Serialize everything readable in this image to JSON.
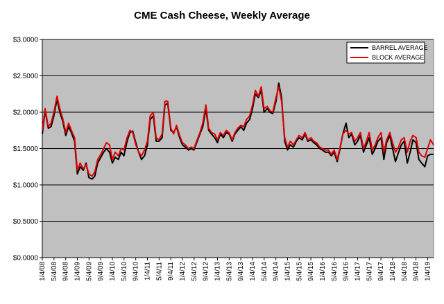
{
  "chart_data": {
    "type": "line",
    "title": "CME Cash Cheese, Weekly Average",
    "ylim": [
      0,
      3
    ],
    "y_ticks": [
      "$0.0000",
      "$0.5000",
      "$1.0000",
      "$1.5000",
      "$2.0000",
      "$2.5000",
      "$3.0000"
    ],
    "x_ticks": [
      "1/4/08",
      "5/4/08",
      "9/4/08",
      "1/4/09",
      "5/4/09",
      "9/4/09",
      "1/4/10",
      "5/4/10",
      "9/4/10",
      "1/4/11",
      "5/4/11",
      "9/4/11",
      "1/4/12",
      "5/4/12",
      "9/4/12",
      "1/4/13",
      "5/4/13",
      "9/4/13",
      "1/4/14",
      "5/4/14",
      "9/4/14",
      "1/4/15",
      "5/4/15",
      "9/4/15",
      "1/4/16",
      "5/4/16",
      "9/4/16",
      "1/4/17",
      "5/4/17",
      "9/4/17",
      "1/4/18",
      "5/4/18",
      "9/4/18",
      "1/4/19"
    ],
    "grid": "horizontal",
    "legend_position": "top-right",
    "plot_background": "#c0c0c0",
    "x": [
      2008.0,
      2008.08,
      2008.17,
      2008.25,
      2008.33,
      2008.42,
      2008.5,
      2008.58,
      2008.67,
      2008.75,
      2008.83,
      2008.92,
      2009.0,
      2009.08,
      2009.17,
      2009.25,
      2009.33,
      2009.42,
      2009.5,
      2009.58,
      2009.67,
      2009.75,
      2009.83,
      2009.92,
      2010.0,
      2010.08,
      2010.17,
      2010.25,
      2010.33,
      2010.42,
      2010.5,
      2010.58,
      2010.67,
      2010.75,
      2010.83,
      2010.92,
      2011.0,
      2011.08,
      2011.17,
      2011.25,
      2011.33,
      2011.42,
      2011.5,
      2011.58,
      2011.67,
      2011.75,
      2011.83,
      2011.92,
      2012.0,
      2012.08,
      2012.17,
      2012.25,
      2012.33,
      2012.42,
      2012.5,
      2012.58,
      2012.67,
      2012.75,
      2012.83,
      2012.92,
      2013.0,
      2013.08,
      2013.17,
      2013.25,
      2013.33,
      2013.42,
      2013.5,
      2013.58,
      2013.67,
      2013.75,
      2013.83,
      2013.92,
      2014.0,
      2014.08,
      2014.17,
      2014.25,
      2014.33,
      2014.42,
      2014.5,
      2014.58,
      2014.67,
      2014.75,
      2014.83,
      2014.92,
      2015.0,
      2015.08,
      2015.17,
      2015.25,
      2015.33,
      2015.42,
      2015.5,
      2015.58,
      2015.67,
      2015.75,
      2015.83,
      2015.92,
      2016.0,
      2016.08,
      2016.17,
      2016.25,
      2016.33,
      2016.42,
      2016.5,
      2016.58,
      2016.67,
      2016.75,
      2016.83,
      2016.92,
      2017.0,
      2017.08,
      2017.17,
      2017.25,
      2017.33,
      2017.42,
      2017.5,
      2017.58,
      2017.67,
      2017.75,
      2017.83,
      2017.92,
      2018.0,
      2018.08,
      2018.17,
      2018.25,
      2018.33,
      2018.42,
      2018.5,
      2018.58,
      2018.67,
      2018.75,
      2018.83,
      2018.92,
      2019.0,
      2019.08,
      2019.17
    ],
    "series": [
      {
        "name": "BARREL AVERAGE",
        "color": "#000000",
        "values": [
          1.7,
          2.02,
          1.78,
          1.8,
          1.95,
          2.18,
          2.0,
          1.88,
          1.68,
          1.8,
          1.72,
          1.6,
          1.15,
          1.25,
          1.2,
          1.3,
          1.1,
          1.08,
          1.12,
          1.3,
          1.38,
          1.45,
          1.5,
          1.45,
          1.3,
          1.38,
          1.35,
          1.45,
          1.4,
          1.6,
          1.72,
          1.74,
          1.58,
          1.45,
          1.35,
          1.4,
          1.55,
          1.9,
          1.95,
          1.6,
          1.6,
          1.65,
          2.1,
          2.12,
          1.75,
          1.72,
          1.8,
          1.65,
          1.55,
          1.52,
          1.48,
          1.5,
          1.48,
          1.6,
          1.7,
          1.8,
          2.05,
          1.75,
          1.7,
          1.65,
          1.58,
          1.7,
          1.65,
          1.72,
          1.7,
          1.6,
          1.7,
          1.75,
          1.8,
          1.75,
          1.85,
          1.9,
          2.05,
          2.25,
          2.2,
          2.3,
          2.0,
          2.05,
          2.0,
          1.98,
          2.15,
          2.4,
          2.2,
          1.6,
          1.48,
          1.55,
          1.52,
          1.6,
          1.65,
          1.62,
          1.7,
          1.6,
          1.62,
          1.58,
          1.55,
          1.5,
          1.48,
          1.45,
          1.45,
          1.4,
          1.45,
          1.32,
          1.5,
          1.7,
          1.85,
          1.65,
          1.7,
          1.55,
          1.6,
          1.68,
          1.45,
          1.55,
          1.65,
          1.42,
          1.5,
          1.6,
          1.65,
          1.35,
          1.58,
          1.68,
          1.5,
          1.32,
          1.45,
          1.55,
          1.6,
          1.3,
          1.45,
          1.62,
          1.58,
          1.35,
          1.3,
          1.25,
          1.4,
          1.42,
          1.42
        ]
      },
      {
        "name": "BLOCK AVERAGE",
        "color": "#e00000",
        "values": [
          1.75,
          2.05,
          1.8,
          1.85,
          2.0,
          2.22,
          2.05,
          1.92,
          1.72,
          1.85,
          1.75,
          1.65,
          1.2,
          1.3,
          1.22,
          1.28,
          1.15,
          1.12,
          1.18,
          1.35,
          1.42,
          1.5,
          1.58,
          1.55,
          1.35,
          1.45,
          1.4,
          1.5,
          1.48,
          1.65,
          1.75,
          1.72,
          1.55,
          1.45,
          1.4,
          1.48,
          1.6,
          1.95,
          2.0,
          1.65,
          1.62,
          1.7,
          2.15,
          2.15,
          1.78,
          1.7,
          1.82,
          1.68,
          1.58,
          1.55,
          1.5,
          1.52,
          1.5,
          1.62,
          1.72,
          1.85,
          2.1,
          1.78,
          1.72,
          1.7,
          1.62,
          1.72,
          1.68,
          1.75,
          1.72,
          1.62,
          1.72,
          1.78,
          1.82,
          1.8,
          1.9,
          1.95,
          2.1,
          2.3,
          2.22,
          2.35,
          2.05,
          2.08,
          2.02,
          2.0,
          2.2,
          2.35,
          2.15,
          1.65,
          1.52,
          1.6,
          1.55,
          1.62,
          1.68,
          1.65,
          1.72,
          1.62,
          1.65,
          1.6,
          1.58,
          1.52,
          1.5,
          1.48,
          1.48,
          1.42,
          1.48,
          1.35,
          1.52,
          1.7,
          1.75,
          1.7,
          1.72,
          1.6,
          1.65,
          1.72,
          1.5,
          1.6,
          1.72,
          1.48,
          1.55,
          1.65,
          1.72,
          1.45,
          1.62,
          1.72,
          1.58,
          1.45,
          1.52,
          1.62,
          1.65,
          1.45,
          1.6,
          1.68,
          1.65,
          1.45,
          1.4,
          1.38,
          1.5,
          1.62,
          1.55
        ]
      }
    ]
  }
}
